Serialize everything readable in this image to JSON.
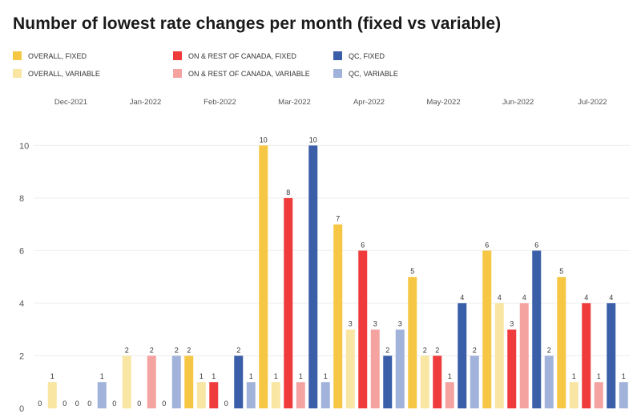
{
  "chart_data": {
    "type": "bar",
    "title": "Number of lowest rate changes per month (fixed vs variable)",
    "categories": [
      "Dec-2021",
      "Jan-2022",
      "Feb-2022",
      "Mar-2022",
      "Apr-2022",
      "May-2022",
      "Jun-2022",
      "Jul-2022"
    ],
    "y_ticks": [
      "0",
      "2",
      "4",
      "6",
      "8",
      "10"
    ],
    "ylim": [
      0,
      10.5
    ],
    "grid": true,
    "legend_placement": "top",
    "series": [
      {
        "name": "OVERALL, FIXED",
        "color": "#f5c744",
        "values": [
          0,
          0,
          2,
          10,
          7,
          5,
          6,
          5
        ]
      },
      {
        "name": "OVERALL, VARIABLE",
        "color": "#f8e6a2",
        "values": [
          1,
          2,
          1,
          1,
          3,
          2,
          4,
          1
        ]
      },
      {
        "name": "ON & REST OF CANADA, FIXED",
        "color": "#ef3b3b",
        "values": [
          0,
          0,
          1,
          8,
          6,
          2,
          3,
          4
        ]
      },
      {
        "name": "ON & REST OF CANADA, VARIABLE",
        "color": "#f4a3a1",
        "values": [
          0,
          2,
          0,
          1,
          3,
          1,
          4,
          1
        ]
      },
      {
        "name": "QC, FIXED",
        "color": "#3b5ea8",
        "values": [
          0,
          0,
          2,
          10,
          2,
          4,
          6,
          4
        ]
      },
      {
        "name": "QC, VARIABLE",
        "color": "#a1b3da",
        "values": [
          1,
          2,
          1,
          1,
          3,
          2,
          2,
          1
        ]
      }
    ]
  }
}
